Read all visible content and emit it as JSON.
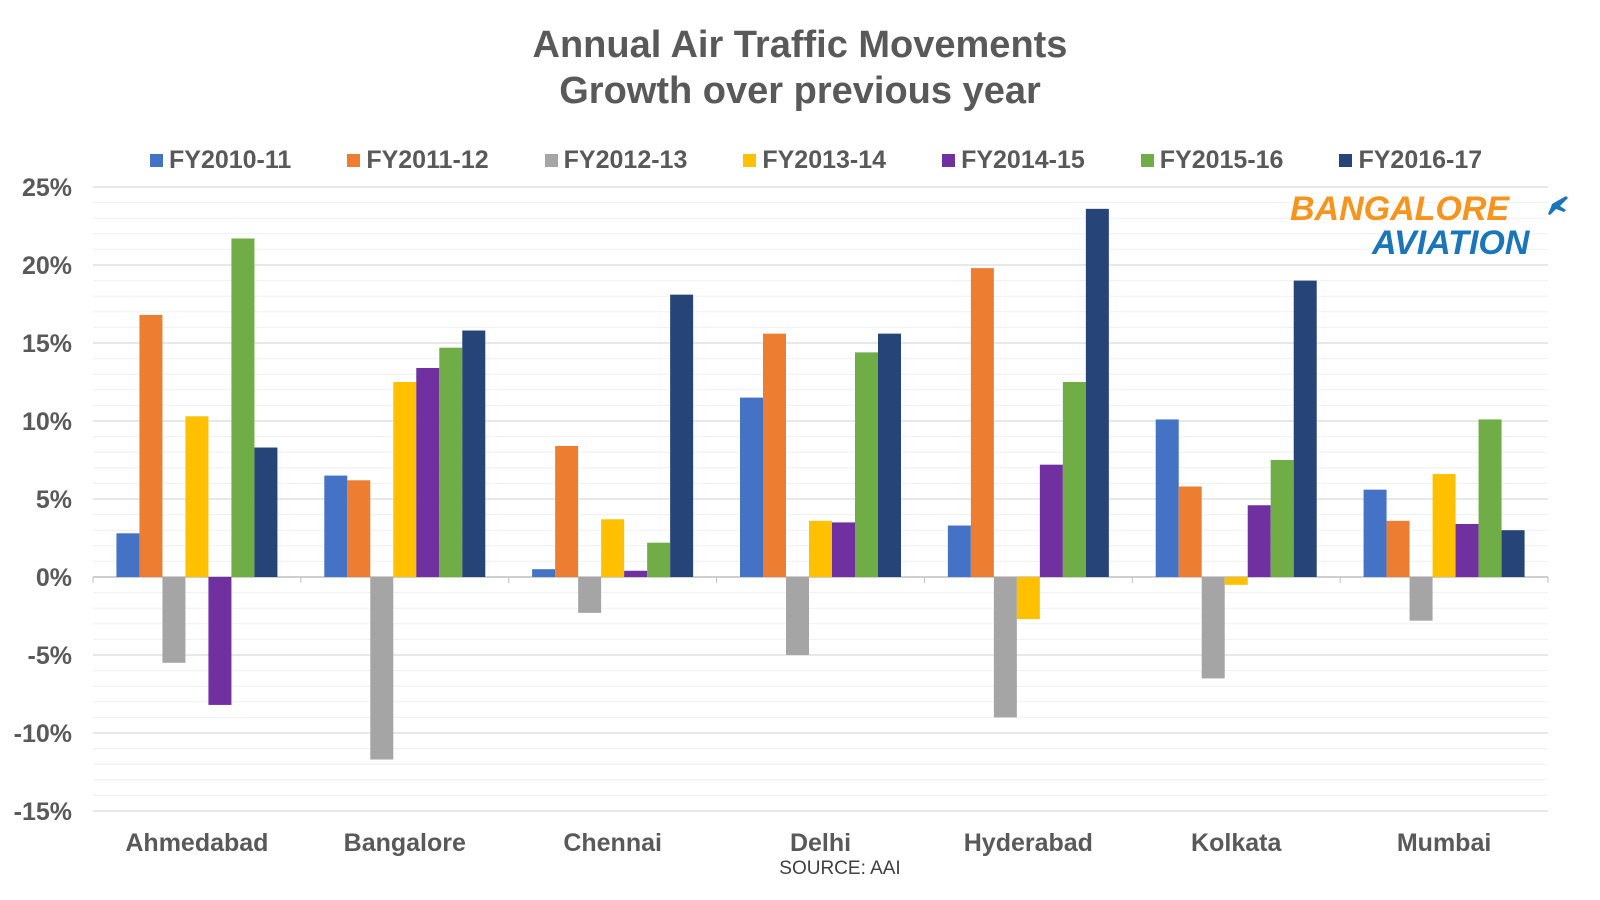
{
  "chart_data": {
    "type": "bar",
    "title": [
      "Annual Air Traffic Movements",
      "Growth over previous year"
    ],
    "categories": [
      "Ahmedabad",
      "Bangalore",
      "Chennai",
      "Delhi",
      "Hyderabad",
      "Kolkata",
      "Mumbai"
    ],
    "series": [
      {
        "name": "FY2010-11",
        "color": "#4472C4",
        "values": [
          2.8,
          6.5,
          0.5,
          11.5,
          3.3,
          10.1,
          5.6
        ]
      },
      {
        "name": "FY2011-12",
        "color": "#ED7D31",
        "values": [
          16.8,
          6.2,
          8.4,
          15.6,
          19.8,
          5.8,
          3.6
        ]
      },
      {
        "name": "FY2012-13",
        "color": "#A5A5A5",
        "values": [
          -5.5,
          -11.7,
          -2.3,
          -5.0,
          -9.0,
          -6.5,
          -2.8
        ]
      },
      {
        "name": "FY2013-14",
        "color": "#FFC000",
        "values": [
          10.3,
          12.5,
          3.7,
          3.6,
          -2.7,
          -0.5,
          6.6
        ]
      },
      {
        "name": "FY2014-15",
        "color": "#7030A0",
        "values": [
          -8.2,
          13.4,
          0.4,
          3.5,
          7.2,
          4.6,
          3.4
        ]
      },
      {
        "name": "FY2015-16",
        "color": "#70AD47",
        "values": [
          21.7,
          14.7,
          2.2,
          14.4,
          12.5,
          7.5,
          10.1
        ]
      },
      {
        "name": "FY2016-17",
        "color": "#264478",
        "values": [
          8.3,
          15.8,
          18.1,
          15.6,
          23.6,
          19.0,
          3.0
        ]
      }
    ],
    "ylim": [
      -15,
      25
    ],
    "yticks": [
      25,
      20,
      15,
      10,
      5,
      0,
      -5,
      -10,
      -15
    ],
    "ytick_labels": [
      "25%",
      "20%",
      "15%",
      "10%",
      "5%",
      "0%",
      "-5%",
      "-10%",
      "-15%"
    ],
    "grid": true,
    "legend_position": "top",
    "xlabel": "",
    "ylabel": ""
  },
  "source_text": "SOURCE: AAI",
  "logo": {
    "line1": "BANGALORE",
    "line2": "AVIATION",
    "color_orange": "#F7941D",
    "color_blue": "#1B75BB"
  }
}
